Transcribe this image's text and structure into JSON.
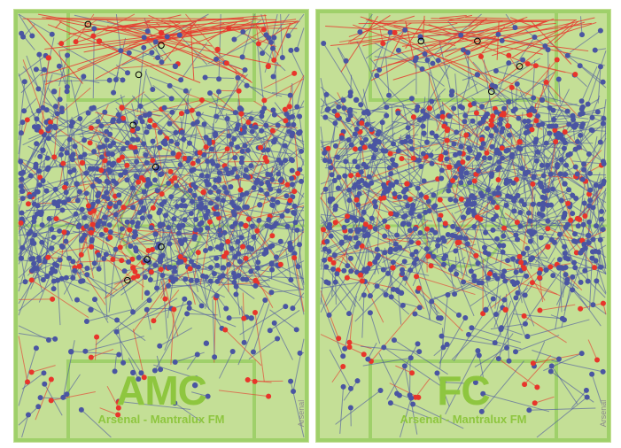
{
  "chart_data": [
    {
      "type": "scatter",
      "title": "AMC",
      "subtitle": "Arsenal - Mantralux FM",
      "team_tag": "Arsenal",
      "xlim": [
        0,
        100
      ],
      "ylim": [
        0,
        100
      ],
      "series": [
        {
          "color": "#4a55a2",
          "points": [
            [
              12,
              18
            ],
            [
              20,
              40
            ],
            [
              35,
              25
            ],
            [
              48,
              52
            ],
            [
              60,
              34
            ],
            [
              72,
              60
            ],
            [
              85,
              45
            ],
            [
              25,
              70
            ],
            [
              40,
              85
            ],
            [
              66,
              78
            ],
            [
              15,
              55
            ],
            [
              90,
              30
            ],
            [
              55,
              12
            ],
            [
              30,
              48
            ],
            [
              78,
              22
            ],
            [
              8,
              32
            ],
            [
              45,
              66
            ],
            [
              62,
              88
            ],
            [
              82,
              72
            ],
            [
              18,
              80
            ]
          ]
        },
        {
          "color": "#e8352b",
          "points": [
            [
              10,
              10
            ],
            [
              28,
              6
            ],
            [
              50,
              4
            ],
            [
              70,
              8
            ],
            [
              88,
              12
            ],
            [
              40,
              60
            ],
            [
              65,
              42
            ],
            [
              22,
              35
            ],
            [
              80,
              50
            ],
            [
              35,
              92
            ]
          ]
        }
      ],
      "highlight_points": [
        [
          24,
          2
        ],
        [
          50,
          7
        ],
        [
          42,
          14
        ],
        [
          40,
          26
        ],
        [
          48,
          36
        ],
        [
          50,
          55
        ],
        [
          45,
          58
        ],
        [
          38,
          63
        ]
      ],
      "highlight_point_color": "#222222",
      "ring_point_color": "#000000"
    },
    {
      "type": "scatter",
      "title": "FC",
      "subtitle": "Arsenal - Mantralux FM",
      "team_tag": "Arsenal",
      "xlim": [
        0,
        100
      ],
      "ylim": [
        0,
        100
      ],
      "series": [
        {
          "color": "#4a55a2",
          "points": [
            [
              12,
              20
            ],
            [
              22,
              42
            ],
            [
              36,
              28
            ],
            [
              50,
              48
            ],
            [
              62,
              32
            ],
            [
              74,
              58
            ],
            [
              86,
              40
            ],
            [
              28,
              66
            ],
            [
              42,
              72
            ],
            [
              64,
              62
            ],
            [
              16,
              52
            ],
            [
              90,
              26
            ],
            [
              55,
              14
            ],
            [
              32,
              46
            ],
            [
              78,
              20
            ],
            [
              46,
              18
            ],
            [
              68,
              44
            ],
            [
              84,
              60
            ],
            [
              20,
              30
            ],
            [
              58,
              70
            ]
          ]
        },
        {
          "color": "#e8352b",
          "points": [
            [
              30,
              40
            ],
            [
              45,
              36
            ],
            [
              60,
              26
            ],
            [
              48,
              54
            ],
            [
              70,
              30
            ],
            [
              25,
              60
            ],
            [
              55,
              48
            ],
            [
              80,
              55
            ],
            [
              38,
              22
            ],
            [
              65,
              70
            ]
          ]
        }
      ],
      "highlight_points": [
        [
          35,
          6
        ],
        [
          55,
          6
        ],
        [
          70,
          12
        ],
        [
          60,
          18
        ]
      ],
      "highlight_point_color": "#e8352b",
      "ring_point_color": "#000000"
    }
  ],
  "palette": {
    "pitch_fill": "#c4df96",
    "pitch_line": "#9fd06a",
    "pass_line": "#4a55a2",
    "pass_line_alt": "#e8352b"
  }
}
